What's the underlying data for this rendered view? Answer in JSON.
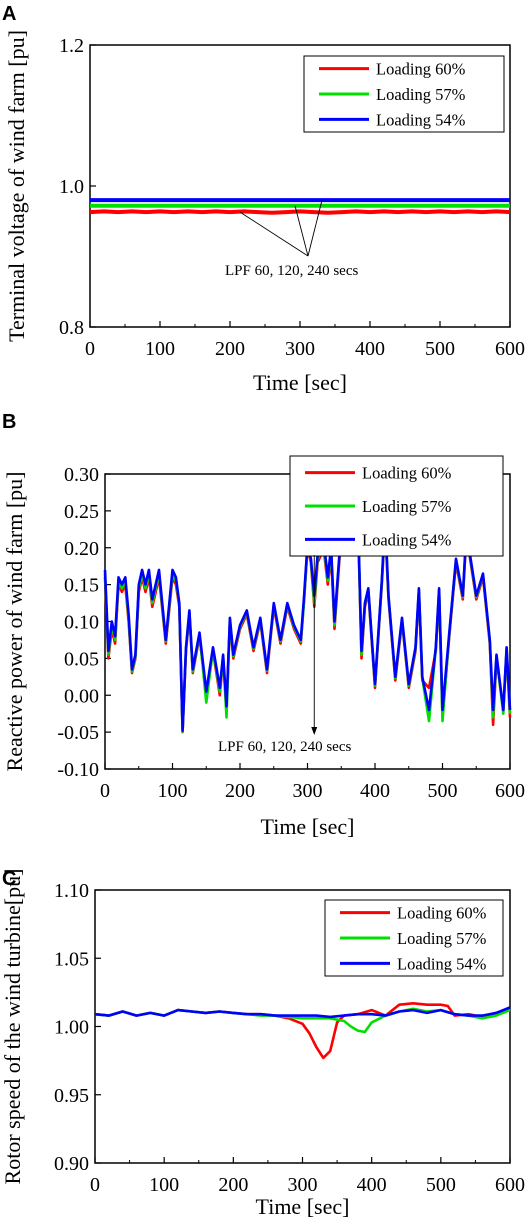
{
  "chart_data": [
    {
      "panel": "A",
      "type": "line",
      "xlabel": "Time [sec]",
      "ylabel": "Terminal voltage of wind farm [pu]",
      "xlim": [
        0,
        600
      ],
      "ylim": [
        0.8,
        1.2
      ],
      "xticks": [
        "0",
        "100",
        "200",
        "300",
        "400",
        "500",
        "600"
      ],
      "yticks": [
        "0.8",
        "1.0",
        "1.2"
      ],
      "legend_position": "top-right",
      "annotation": "LPF 60, 120, 240 secs",
      "series": [
        {
          "name": "Loading 60%",
          "color": "#ff0000",
          "x": [
            0,
            20,
            40,
            60,
            80,
            100,
            120,
            140,
            160,
            180,
            200,
            220,
            240,
            260,
            280,
            300,
            320,
            340,
            360,
            380,
            400,
            420,
            440,
            460,
            480,
            500,
            520,
            540,
            560,
            580,
            600
          ],
          "y": [
            0.963,
            0.964,
            0.963,
            0.964,
            0.963,
            0.964,
            0.963,
            0.964,
            0.963,
            0.964,
            0.963,
            0.964,
            0.963,
            0.962,
            0.963,
            0.964,
            0.963,
            0.962,
            0.963,
            0.964,
            0.963,
            0.964,
            0.963,
            0.964,
            0.963,
            0.964,
            0.963,
            0.964,
            0.963,
            0.964,
            0.963
          ]
        },
        {
          "name": "Loading 57%",
          "color": "#00e000",
          "x": [
            0,
            20,
            40,
            60,
            80,
            100,
            120,
            140,
            160,
            180,
            200,
            220,
            240,
            260,
            280,
            300,
            320,
            340,
            360,
            380,
            400,
            420,
            440,
            460,
            480,
            500,
            520,
            540,
            560,
            580,
            600
          ],
          "y": [
            0.972,
            0.972,
            0.972,
            0.972,
            0.972,
            0.972,
            0.972,
            0.972,
            0.972,
            0.972,
            0.972,
            0.972,
            0.972,
            0.972,
            0.972,
            0.972,
            0.972,
            0.972,
            0.972,
            0.972,
            0.972,
            0.972,
            0.972,
            0.972,
            0.972,
            0.972,
            0.972,
            0.972,
            0.972,
            0.972,
            0.972
          ]
        },
        {
          "name": "Loading 54%",
          "color": "#0000ff",
          "x": [
            0,
            20,
            40,
            60,
            80,
            100,
            120,
            140,
            160,
            180,
            200,
            220,
            240,
            260,
            280,
            300,
            320,
            340,
            360,
            380,
            400,
            420,
            440,
            460,
            480,
            500,
            520,
            540,
            560,
            580,
            600
          ],
          "y": [
            0.98,
            0.98,
            0.98,
            0.98,
            0.98,
            0.98,
            0.98,
            0.98,
            0.98,
            0.98,
            0.98,
            0.98,
            0.98,
            0.98,
            0.98,
            0.98,
            0.98,
            0.98,
            0.98,
            0.98,
            0.98,
            0.98,
            0.98,
            0.98,
            0.98,
            0.98,
            0.98,
            0.98,
            0.98,
            0.98,
            0.98
          ]
        }
      ]
    },
    {
      "panel": "B",
      "type": "line",
      "xlabel": "Time [sec]",
      "ylabel": "Reactive power of wind farm [pu]",
      "xlim": [
        0,
        600
      ],
      "ylim": [
        -0.1,
        0.3
      ],
      "xticks": [
        "0",
        "100",
        "200",
        "300",
        "400",
        "500",
        "600"
      ],
      "yticks": [
        "-0.10",
        "-0.05",
        "0.00",
        "0.05",
        "0.10",
        "0.15",
        "0.20",
        "0.25",
        "0.30"
      ],
      "legend_position": "top-right",
      "annotation": "LPF 60, 120, 240 secs",
      "series": [
        {
          "name": "Loading 60%",
          "color": "#ff0000",
          "x": [
            0,
            5,
            10,
            15,
            20,
            25,
            30,
            35,
            40,
            45,
            50,
            55,
            60,
            65,
            70,
            80,
            90,
            100,
            105,
            110,
            115,
            120,
            125,
            130,
            140,
            150,
            160,
            170,
            175,
            180,
            185,
            190,
            200,
            210,
            220,
            230,
            240,
            250,
            260,
            270,
            280,
            290,
            295,
            300,
            305,
            310,
            315,
            320,
            325,
            330,
            335,
            340,
            350,
            360,
            365,
            370,
            375,
            380,
            385,
            390,
            400,
            410,
            415,
            420,
            430,
            440,
            450,
            460,
            465,
            470,
            480,
            490,
            495,
            500,
            510,
            520,
            530,
            535,
            540,
            550,
            560,
            570,
            575,
            580,
            590,
            595,
            600
          ],
          "y": [
            0.16,
            0.05,
            0.09,
            0.07,
            0.15,
            0.14,
            0.15,
            0.1,
            0.03,
            0.05,
            0.14,
            0.16,
            0.14,
            0.16,
            0.12,
            0.16,
            0.07,
            0.16,
            0.15,
            0.12,
            -0.05,
            0.06,
            0.11,
            0.03,
            0.08,
            0.0,
            0.06,
            0.0,
            0.05,
            -0.02,
            0.1,
            0.05,
            0.09,
            0.11,
            0.06,
            0.1,
            0.03,
            0.12,
            0.07,
            0.12,
            0.09,
            0.07,
            0.13,
            0.2,
            0.18,
            0.12,
            0.18,
            0.19,
            0.19,
            0.15,
            0.19,
            0.09,
            0.22,
            0.21,
            0.22,
            0.24,
            0.23,
            0.05,
            0.12,
            0.14,
            0.01,
            0.15,
            0.23,
            0.13,
            0.02,
            0.1,
            0.01,
            0.06,
            0.14,
            0.02,
            0.01,
            0.06,
            0.14,
            -0.03,
            0.08,
            0.18,
            0.13,
            0.21,
            0.19,
            0.13,
            0.16,
            0.07,
            -0.04,
            0.05,
            -0.02,
            0.06,
            -0.03
          ]
        },
        {
          "name": "Loading 57%",
          "color": "#00e000",
          "x": [
            0,
            5,
            10,
            15,
            20,
            25,
            30,
            35,
            40,
            45,
            50,
            55,
            60,
            65,
            70,
            80,
            90,
            100,
            105,
            110,
            115,
            120,
            125,
            130,
            140,
            150,
            160,
            170,
            175,
            180,
            185,
            190,
            200,
            210,
            220,
            230,
            240,
            250,
            260,
            270,
            280,
            290,
            295,
            300,
            305,
            310,
            315,
            320,
            325,
            330,
            335,
            340,
            350,
            360,
            365,
            370,
            375,
            380,
            385,
            390,
            400,
            410,
            415,
            420,
            430,
            440,
            450,
            460,
            465,
            470,
            480,
            490,
            495,
            500,
            510,
            520,
            530,
            535,
            540,
            550,
            560,
            570,
            575,
            580,
            590,
            595,
            600
          ],
          "y": [
            0.165,
            0.055,
            0.095,
            0.075,
            0.155,
            0.145,
            0.155,
            0.105,
            0.032,
            0.052,
            0.145,
            0.165,
            0.145,
            0.165,
            0.125,
            0.165,
            0.073,
            0.165,
            0.155,
            0.123,
            -0.049,
            0.063,
            0.113,
            0.032,
            0.083,
            -0.01,
            0.063,
            0.005,
            0.053,
            -0.03,
            0.103,
            0.053,
            0.093,
            0.113,
            0.063,
            0.103,
            0.033,
            0.123,
            0.073,
            0.123,
            0.093,
            0.073,
            0.128,
            0.203,
            0.183,
            0.125,
            0.185,
            0.195,
            0.195,
            0.155,
            0.195,
            0.095,
            0.225,
            0.215,
            0.225,
            0.243,
            0.233,
            0.055,
            0.123,
            0.143,
            0.013,
            0.153,
            0.235,
            0.133,
            0.023,
            0.103,
            0.013,
            0.063,
            0.143,
            0.023,
            -0.035,
            0.063,
            0.143,
            -0.035,
            0.083,
            0.183,
            0.133,
            0.213,
            0.193,
            0.133,
            0.163,
            0.073,
            -0.03,
            0.053,
            -0.025,
            0.063,
            -0.025
          ]
        },
        {
          "name": "Loading 54%",
          "color": "#0000ff",
          "x": [
            0,
            5,
            10,
            15,
            20,
            25,
            30,
            35,
            40,
            45,
            50,
            55,
            60,
            65,
            70,
            80,
            90,
            100,
            105,
            110,
            115,
            120,
            125,
            130,
            140,
            150,
            160,
            170,
            175,
            180,
            185,
            190,
            200,
            210,
            220,
            230,
            240,
            250,
            260,
            270,
            280,
            290,
            295,
            300,
            305,
            310,
            315,
            320,
            325,
            330,
            335,
            340,
            350,
            360,
            365,
            370,
            375,
            380,
            385,
            390,
            400,
            410,
            415,
            420,
            430,
            440,
            450,
            460,
            465,
            470,
            480,
            490,
            495,
            500,
            510,
            520,
            530,
            535,
            540,
            550,
            560,
            570,
            575,
            580,
            590,
            595,
            600
          ],
          "y": [
            0.17,
            0.06,
            0.1,
            0.08,
            0.16,
            0.15,
            0.16,
            0.11,
            0.035,
            0.055,
            0.15,
            0.17,
            0.15,
            0.17,
            0.13,
            0.17,
            0.075,
            0.17,
            0.16,
            0.125,
            -0.048,
            0.065,
            0.115,
            0.035,
            0.085,
            0.005,
            0.065,
            0.01,
            0.055,
            -0.015,
            0.105,
            0.055,
            0.095,
            0.115,
            0.065,
            0.105,
            0.035,
            0.125,
            0.075,
            0.125,
            0.095,
            0.075,
            0.135,
            0.205,
            0.185,
            0.135,
            0.19,
            0.2,
            0.2,
            0.16,
            0.2,
            0.1,
            0.225,
            0.22,
            0.225,
            0.245,
            0.235,
            0.06,
            0.125,
            0.145,
            0.015,
            0.155,
            0.24,
            0.135,
            0.025,
            0.105,
            0.015,
            0.065,
            0.145,
            0.025,
            -0.02,
            0.065,
            0.145,
            -0.02,
            0.085,
            0.185,
            0.135,
            0.215,
            0.195,
            0.135,
            0.165,
            0.075,
            -0.02,
            0.055,
            -0.02,
            0.065,
            -0.02
          ]
        }
      ]
    },
    {
      "panel": "C",
      "type": "line",
      "xlabel": "Time [sec]",
      "ylabel": "Rotor speed of the wind turbine[pu]",
      "xlim": [
        0,
        600
      ],
      "ylim": [
        0.9,
        1.1
      ],
      "xticks": [
        "0",
        "100",
        "200",
        "300",
        "400",
        "500",
        "600"
      ],
      "yticks": [
        "0.90",
        "0.95",
        "1.00",
        "1.05",
        "1.10"
      ],
      "legend_position": "top-right",
      "series": [
        {
          "name": "Loading 60%",
          "color": "#ff0000",
          "x": [
            0,
            20,
            40,
            60,
            80,
            100,
            120,
            140,
            160,
            180,
            200,
            220,
            240,
            260,
            280,
            300,
            310,
            320,
            330,
            340,
            350,
            360,
            380,
            400,
            420,
            440,
            460,
            480,
            500,
            510,
            520,
            540,
            560,
            580,
            600
          ],
          "y": [
            1.009,
            1.008,
            1.011,
            1.008,
            1.01,
            1.008,
            1.012,
            1.011,
            1.01,
            1.011,
            1.01,
            1.009,
            1.009,
            1.008,
            1.006,
            1.002,
            0.995,
            0.985,
            0.977,
            0.982,
            1.003,
            1.008,
            1.009,
            1.012,
            1.008,
            1.016,
            1.017,
            1.016,
            1.016,
            1.015,
            1.008,
            1.009,
            1.007,
            1.01,
            1.013
          ]
        },
        {
          "name": "Loading 57%",
          "color": "#00e000",
          "x": [
            0,
            20,
            40,
            60,
            80,
            100,
            120,
            140,
            160,
            180,
            200,
            220,
            240,
            260,
            280,
            300,
            320,
            340,
            360,
            370,
            380,
            390,
            400,
            420,
            440,
            460,
            480,
            500,
            520,
            540,
            560,
            580,
            600
          ],
          "y": [
            1.009,
            1.008,
            1.011,
            1.008,
            1.01,
            1.008,
            1.012,
            1.011,
            1.01,
            1.011,
            1.01,
            1.009,
            1.008,
            1.008,
            1.007,
            1.006,
            1.006,
            1.006,
            1.004,
            1.0,
            0.997,
            0.996,
            1.003,
            1.008,
            1.011,
            1.013,
            1.011,
            1.012,
            1.009,
            1.008,
            1.006,
            1.008,
            1.012
          ]
        },
        {
          "name": "Loading 54%",
          "color": "#0000ff",
          "x": [
            0,
            20,
            40,
            60,
            80,
            100,
            120,
            140,
            160,
            180,
            200,
            220,
            240,
            260,
            280,
            300,
            320,
            340,
            360,
            380,
            400,
            420,
            440,
            460,
            480,
            500,
            520,
            540,
            560,
            580,
            600
          ],
          "y": [
            1.009,
            1.008,
            1.011,
            1.008,
            1.01,
            1.008,
            1.012,
            1.011,
            1.01,
            1.011,
            1.01,
            1.009,
            1.009,
            1.008,
            1.008,
            1.008,
            1.008,
            1.007,
            1.008,
            1.009,
            1.009,
            1.008,
            1.011,
            1.012,
            1.01,
            1.012,
            1.009,
            1.008,
            1.008,
            1.01,
            1.014
          ]
        }
      ]
    }
  ]
}
